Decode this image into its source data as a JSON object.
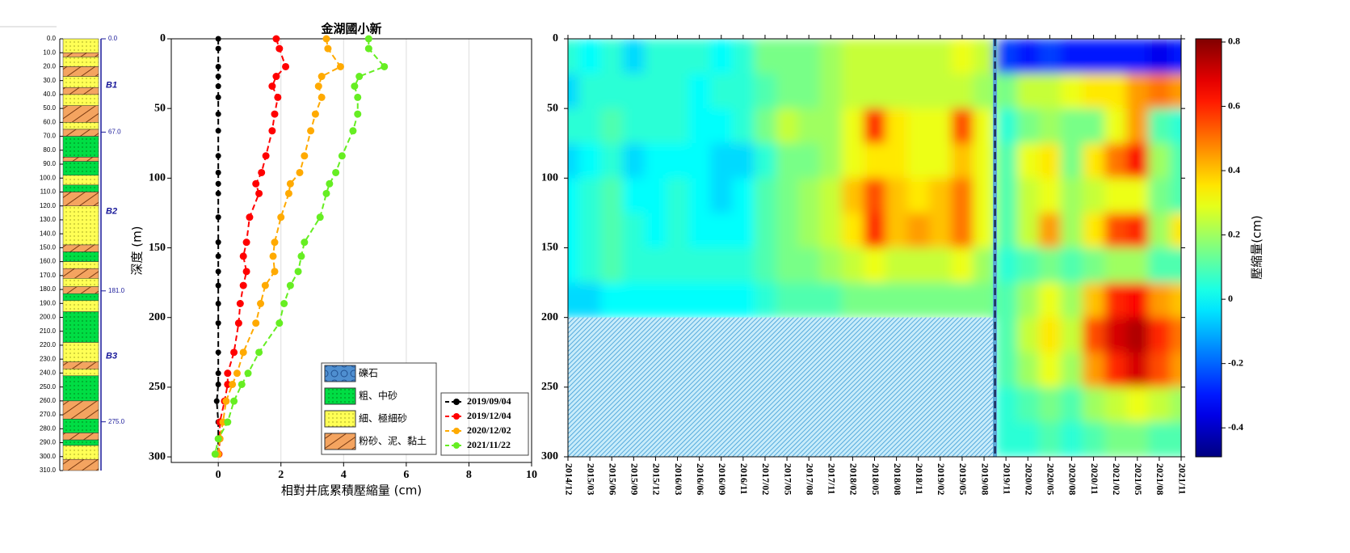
{
  "borehole": {
    "depth_ticks": [
      {
        "value": 0,
        "label": "0.0"
      },
      {
        "value": 10,
        "label": "10.0"
      },
      {
        "value": 20,
        "label": "20.0"
      },
      {
        "value": 30,
        "label": "30.0"
      },
      {
        "value": 40,
        "label": "40.0"
      },
      {
        "value": 50,
        "label": "50.0"
      },
      {
        "value": 60,
        "label": "60.0"
      },
      {
        "value": 70,
        "label": "70.0"
      },
      {
        "value": 80,
        "label": "80.0"
      },
      {
        "value": 90,
        "label": "90.0"
      },
      {
        "value": 100,
        "label": "100.0"
      },
      {
        "value": 110,
        "label": "110.0"
      },
      {
        "value": 120,
        "label": "120.0"
      },
      {
        "value": 130,
        "label": "130.0"
      },
      {
        "value": 140,
        "label": "140.0"
      },
      {
        "value": 150,
        "label": "150.0"
      },
      {
        "value": 160,
        "label": "160.0"
      },
      {
        "value": 170,
        "label": "170.0"
      },
      {
        "value": 180,
        "label": "180.0"
      },
      {
        "value": 190,
        "label": "190.0"
      },
      {
        "value": 200,
        "label": "200.0"
      },
      {
        "value": 210,
        "label": "210.0"
      },
      {
        "value": 220,
        "label": "220.0"
      },
      {
        "value": 230,
        "label": "230.0"
      },
      {
        "value": 240,
        "label": "240.0"
      },
      {
        "value": 250,
        "label": "250.0"
      },
      {
        "value": 260,
        "label": "260.0"
      },
      {
        "value": 270,
        "label": "270.0"
      },
      {
        "value": 280,
        "label": "280.0"
      },
      {
        "value": 290,
        "label": "290.0"
      },
      {
        "value": 300,
        "label": "300.0"
      },
      {
        "value": 310,
        "label": "310.0"
      }
    ],
    "boundaries": [
      {
        "value": 0,
        "label": "0.0"
      },
      {
        "value": 67,
        "label": "67.0"
      },
      {
        "value": 181,
        "label": "181.0"
      },
      {
        "value": 275,
        "label": "275.0"
      }
    ],
    "units": [
      "B1",
      "B2",
      "B3"
    ],
    "legend": [
      {
        "label": "礫石",
        "color": "#4f8fd0"
      },
      {
        "label": "粗、中砂",
        "color": "#00dd44"
      },
      {
        "label": "細、極細砂",
        "color": "#ffff55"
      },
      {
        "label": "粉砂、泥、黏土",
        "color": "#f4a460"
      }
    ],
    "layers": [
      [
        0,
        10,
        2
      ],
      [
        10,
        13,
        3
      ],
      [
        13,
        20,
        2
      ],
      [
        20,
        27,
        3
      ],
      [
        27,
        35,
        2
      ],
      [
        35,
        40,
        3
      ],
      [
        40,
        48,
        2
      ],
      [
        48,
        60,
        3
      ],
      [
        60,
        65,
        2
      ],
      [
        65,
        70,
        3
      ],
      [
        70,
        85,
        1
      ],
      [
        85,
        88,
        3
      ],
      [
        88,
        98,
        1
      ],
      [
        98,
        105,
        2
      ],
      [
        105,
        110,
        1
      ],
      [
        110,
        120,
        3
      ],
      [
        120,
        148,
        2
      ],
      [
        148,
        153,
        3
      ],
      [
        153,
        160,
        1
      ],
      [
        160,
        165,
        2
      ],
      [
        165,
        172,
        3
      ],
      [
        172,
        178,
        2
      ],
      [
        178,
        183,
        3
      ],
      [
        183,
        188,
        1
      ],
      [
        188,
        196,
        2
      ],
      [
        196,
        218,
        1
      ],
      [
        218,
        232,
        2
      ],
      [
        232,
        237,
        3
      ],
      [
        237,
        242,
        2
      ],
      [
        242,
        260,
        1
      ],
      [
        260,
        273,
        3
      ],
      [
        273,
        283,
        1
      ],
      [
        283,
        288,
        3
      ],
      [
        288,
        292,
        1
      ],
      [
        292,
        302,
        2
      ],
      [
        302,
        310,
        3
      ]
    ]
  },
  "chart_data": [
    {
      "type": "line",
      "title": "金湖國小新",
      "xlabel": "相對井底累積壓縮量 (cm)",
      "ylabel": "深度 (m)",
      "xlim": [
        -1.5,
        10
      ],
      "ylim": [
        0,
        304
      ],
      "xticks": [
        0,
        2,
        4,
        6,
        8,
        10
      ],
      "yticks": [
        0,
        50,
        100,
        150,
        200,
        250,
        300
      ],
      "grid_x": true,
      "depths": [
        0,
        7,
        20,
        27,
        34,
        42,
        54,
        66,
        84,
        96,
        104,
        111,
        128,
        146,
        156,
        167,
        177,
        190,
        204,
        225,
        240,
        248,
        260,
        275,
        287,
        298
      ],
      "series": [
        {
          "name": "2019/09/04",
          "color": "#000000",
          "values": [
            0,
            0,
            0,
            0,
            0,
            0,
            0,
            0,
            0,
            0,
            0,
            0,
            0,
            0,
            0,
            0,
            0,
            0,
            0,
            0,
            0,
            0,
            -0.05,
            0,
            0,
            0
          ]
        },
        {
          "name": "2019/12/04",
          "color": "#ff0000",
          "values": [
            1.85,
            1.95,
            2.15,
            1.85,
            1.72,
            1.9,
            1.8,
            1.72,
            1.52,
            1.38,
            1.2,
            1.3,
            1.0,
            0.9,
            0.8,
            0.9,
            0.8,
            0.7,
            0.65,
            0.5,
            0.3,
            0.3,
            0.2,
            0.05,
            0.05,
            0.02
          ]
        },
        {
          "name": "2020/12/02",
          "color": "#ffaa00",
          "values": [
            3.45,
            3.5,
            3.9,
            3.3,
            3.2,
            3.3,
            3.1,
            2.95,
            2.75,
            2.6,
            2.3,
            2.25,
            2.0,
            1.8,
            1.75,
            1.8,
            1.5,
            1.35,
            1.2,
            0.8,
            0.6,
            0.45,
            0.25,
            0.15,
            0.05,
            0.0
          ]
        },
        {
          "name": "2021/11/22",
          "color": "#66ee22",
          "values": [
            4.8,
            4.8,
            5.3,
            4.5,
            4.35,
            4.45,
            4.45,
            4.3,
            3.95,
            3.75,
            3.55,
            3.45,
            3.25,
            2.75,
            2.65,
            2.55,
            2.3,
            2.1,
            1.95,
            1.3,
            0.95,
            0.75,
            0.5,
            0.3,
            0.0,
            -0.1
          ]
        }
      ]
    },
    {
      "type": "heatmap",
      "colorbar_label": "壓縮量(cm)",
      "x": [
        "2014/12",
        "2015/03",
        "2015/06",
        "2015/09",
        "2015/12",
        "2016/03",
        "2016/06",
        "2016/09",
        "2016/11",
        "2017/02",
        "2017/05",
        "2017/08",
        "2017/11",
        "2018/02",
        "2018/05",
        "2018/08",
        "2018/11",
        "2019/02",
        "2019/05",
        "2019/08",
        "2019/11",
        "2020/02",
        "2020/05",
        "2020/08",
        "2020/11",
        "2021/02",
        "2021/05",
        "2021/08",
        "2021/11"
      ],
      "depth_bins": [
        0,
        25,
        50,
        75,
        100,
        125,
        150,
        175,
        200,
        225,
        250,
        275,
        300
      ],
      "ylim": [
        0,
        300
      ],
      "yticks": [
        0,
        50,
        100,
        150,
        200,
        250,
        300
      ],
      "clim": [
        -0.49,
        0.81
      ],
      "cticks": [
        -0.4,
        -0.2,
        0,
        0.2,
        0.4,
        0.6,
        0.8
      ],
      "z": [
        [
          0.05,
          0.0,
          0.05,
          -0.05,
          0.05,
          0.05,
          0.05,
          0.0,
          0.05,
          0.15,
          0.15,
          0.15,
          0.2,
          0.25,
          0.25,
          0.25,
          0.25,
          0.25,
          0.3,
          0.25,
          -0.25,
          -0.3,
          -0.25,
          -0.3,
          -0.3,
          -0.3,
          -0.3,
          -0.35,
          -0.3
        ],
        [
          -0.05,
          0.05,
          0.05,
          0.05,
          0.05,
          0.05,
          0.0,
          0.05,
          0.05,
          0.1,
          0.15,
          0.15,
          0.2,
          0.25,
          0.25,
          0.25,
          0.25,
          0.25,
          0.25,
          0.2,
          0.15,
          0.25,
          0.25,
          0.3,
          0.35,
          0.35,
          0.45,
          0.5,
          0.45
        ],
        [
          0.05,
          0.05,
          0.1,
          0.05,
          0.05,
          0.05,
          0.0,
          0.0,
          0.05,
          0.15,
          0.25,
          0.2,
          0.2,
          0.3,
          0.6,
          0.35,
          0.3,
          0.3,
          0.55,
          0.3,
          0.05,
          0.15,
          0.2,
          0.15,
          0.15,
          0.3,
          0.45,
          0.1,
          0.05
        ],
        [
          -0.05,
          0.0,
          0.05,
          -0.05,
          0.0,
          0.0,
          0.0,
          -0.05,
          -0.05,
          0.05,
          0.15,
          0.15,
          0.2,
          0.3,
          0.35,
          0.35,
          0.3,
          0.3,
          0.4,
          0.3,
          0.1,
          0.3,
          0.35,
          0.15,
          0.35,
          0.5,
          0.65,
          0.2,
          0.1
        ],
        [
          0.0,
          0.05,
          0.1,
          0.0,
          0.0,
          0.05,
          0.0,
          -0.05,
          0.0,
          0.1,
          0.15,
          0.2,
          0.25,
          0.4,
          0.55,
          0.4,
          0.35,
          0.4,
          0.5,
          0.3,
          0.1,
          0.25,
          0.3,
          0.2,
          0.25,
          0.3,
          0.3,
          0.15,
          0.1
        ],
        [
          0.0,
          0.05,
          0.1,
          0.05,
          0.0,
          0.05,
          0.0,
          0.0,
          0.0,
          0.1,
          0.15,
          0.2,
          0.25,
          0.35,
          0.6,
          0.4,
          0.45,
          0.4,
          0.5,
          0.3,
          0.1,
          0.25,
          0.45,
          0.2,
          0.35,
          0.55,
          0.6,
          0.2,
          0.35
        ],
        [
          0.0,
          0.05,
          0.1,
          0.05,
          0.05,
          0.05,
          0.05,
          0.05,
          0.05,
          0.1,
          0.15,
          0.15,
          0.2,
          0.25,
          0.3,
          0.25,
          0.25,
          0.25,
          0.3,
          0.2,
          0.05,
          0.1,
          0.15,
          0.1,
          0.15,
          0.2,
          0.2,
          0.1,
          0.1
        ],
        [
          -0.05,
          -0.05,
          0.0,
          0.0,
          0.0,
          0.0,
          0.0,
          0.0,
          0.0,
          0.05,
          0.1,
          0.1,
          0.1,
          0.15,
          0.15,
          0.15,
          0.15,
          0.15,
          0.15,
          0.15,
          0.1,
          0.2,
          0.3,
          0.2,
          0.4,
          0.6,
          0.65,
          0.45,
          0.4
        ],
        [
          null,
          null,
          null,
          null,
          null,
          null,
          null,
          null,
          null,
          null,
          null,
          null,
          null,
          null,
          null,
          null,
          null,
          null,
          null,
          null,
          0.1,
          0.25,
          0.35,
          0.25,
          0.55,
          0.7,
          0.75,
          0.6,
          0.5
        ],
        [
          null,
          null,
          null,
          null,
          null,
          null,
          null,
          null,
          null,
          null,
          null,
          null,
          null,
          null,
          null,
          null,
          null,
          null,
          null,
          null,
          0.1,
          0.2,
          0.3,
          0.2,
          0.45,
          0.6,
          0.7,
          0.55,
          0.45
        ],
        [
          null,
          null,
          null,
          null,
          null,
          null,
          null,
          null,
          null,
          null,
          null,
          null,
          null,
          null,
          null,
          null,
          null,
          null,
          null,
          null,
          0.05,
          0.1,
          0.15,
          0.1,
          0.2,
          0.25,
          0.3,
          0.25,
          0.2
        ],
        [
          null,
          null,
          null,
          null,
          null,
          null,
          null,
          null,
          null,
          null,
          null,
          null,
          null,
          null,
          null,
          null,
          null,
          null,
          null,
          null,
          0.05,
          0.05,
          0.1,
          0.05,
          0.1,
          0.15,
          0.15,
          0.1,
          0.1
        ]
      ]
    }
  ]
}
